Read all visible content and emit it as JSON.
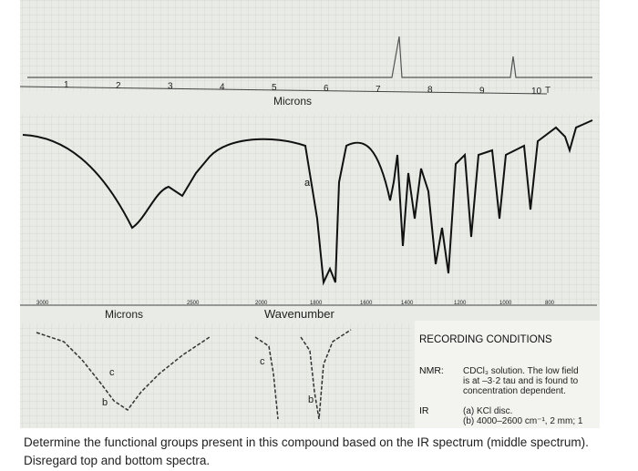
{
  "top_spectrum": {
    "scale_labels": [
      "1",
      "2",
      "3",
      "4",
      "5",
      "6",
      "7",
      "8",
      "9",
      "10"
    ],
    "axis_label": "Microns",
    "corner_label": "T"
  },
  "middle_spectrum": {
    "annotation": "a",
    "wavenumber_labels": [
      "3000",
      "2500",
      "2000",
      "1800",
      "1600",
      "1400",
      "1200",
      "1000",
      "800"
    ],
    "axis_label": "Wavenumber",
    "microns_label": "Microns"
  },
  "bottom_spectrum": {
    "annotations": [
      "c",
      "b",
      "c",
      "b"
    ]
  },
  "recording_conditions": {
    "title": "RECORDING CONDITIONS",
    "nmr_label": "NMR:",
    "nmr_lines": [
      "CDCl₃ solution. The low field",
      "is at –3·2 tau and is found to",
      "concentration dependent."
    ],
    "ir_label": "IR",
    "ir_lines": [
      "(a) KCl disc.",
      "(b) 4000–2600 cm⁻¹, 2 mm; 1"
    ]
  },
  "question": [
    "Determine the functional groups present in this compound based on the IR spectrum (middle spectrum).",
    "Disregard top and bottom spectra."
  ]
}
